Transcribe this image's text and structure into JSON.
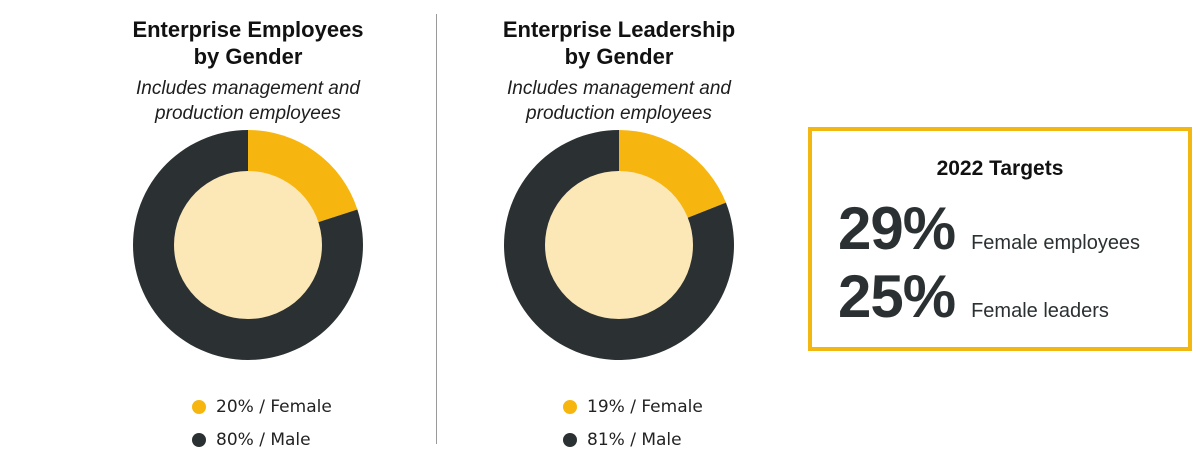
{
  "colors": {
    "female": "#f7b50f",
    "male": "#2b3132",
    "center": "#fce8b7",
    "box_border": "#f2b711"
  },
  "chart_data": [
    {
      "type": "pie",
      "title": "Enterprise Employees by Gender",
      "subtitle": "Includes management and production employees",
      "categories": [
        "Female",
        "Male"
      ],
      "values": [
        20,
        80
      ],
      "legend": [
        "20% / Female",
        "80% / Male"
      ],
      "legend_position": "bottom"
    },
    {
      "type": "pie",
      "title": "Enterprise Leadership by Gender",
      "subtitle": "Includes management and production employees",
      "categories": [
        "Female",
        "Male"
      ],
      "values": [
        19,
        81
      ],
      "legend": [
        "19% / Female",
        "81% / Male"
      ],
      "legend_position": "bottom"
    }
  ],
  "panels": [
    {
      "title_line1": "Enterprise Employees",
      "title_line2": "by Gender",
      "subtitle_line1": "Includes management and",
      "subtitle_line2": "production employees",
      "legend": [
        "20% / Female",
        "80% / Male"
      ]
    },
    {
      "title_line1": "Enterprise Leadership",
      "title_line2": "by Gender",
      "subtitle_line1": "Includes management and",
      "subtitle_line2": "production employees",
      "legend": [
        "19% / Female",
        "81% / Male"
      ]
    }
  ],
  "targets": {
    "title": "2022 Targets",
    "items": [
      {
        "value": "29%",
        "label": "Female employees"
      },
      {
        "value": "25%",
        "label": "Female leaders"
      }
    ]
  }
}
